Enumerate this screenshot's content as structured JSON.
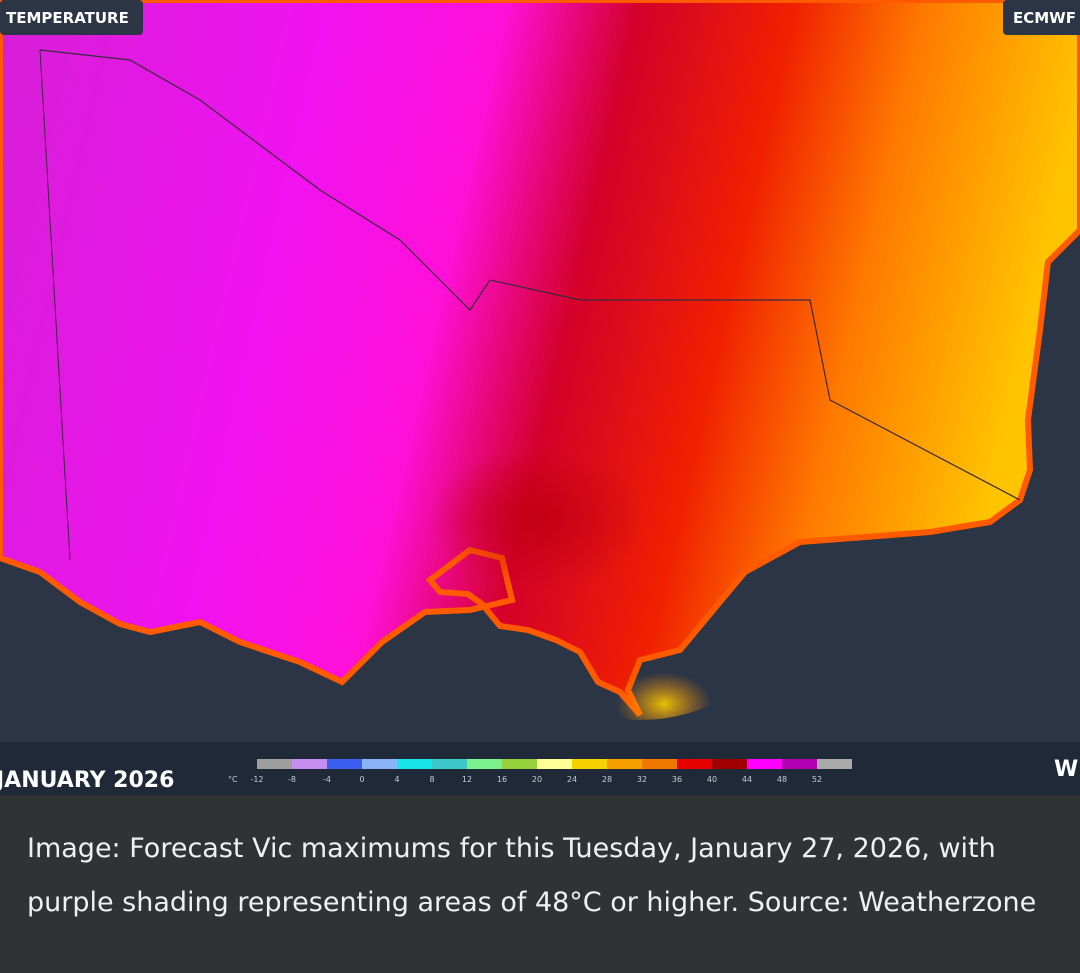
{
  "badges": {
    "left": "TEMPERATURE",
    "right": "ECMWF"
  },
  "date": "JANUARY 2026",
  "edge_letter": "W",
  "legend": {
    "unit": "°C",
    "ticks": [
      -12,
      -8,
      -4,
      0,
      4,
      8,
      12,
      16,
      20,
      24,
      28,
      32,
      36,
      40,
      44,
      48,
      52
    ],
    "colors": [
      "#9e9e9e",
      "#c58ef0",
      "#3a5ef0",
      "#8ab4f8",
      "#19e6e6",
      "#3cc8c8",
      "#7cf08c",
      "#96d23c",
      "#ffff96",
      "#f5d200",
      "#f5a000",
      "#f07800",
      "#e60000",
      "#a00000",
      "#ff00ff",
      "#b400b4",
      "#aaaaaa"
    ]
  },
  "caption": "Image: Forecast Vic maximums for this Tuesday, January 27, 2026, with purple shading representing areas of 48°C or higher. Source: Weatherzone"
}
